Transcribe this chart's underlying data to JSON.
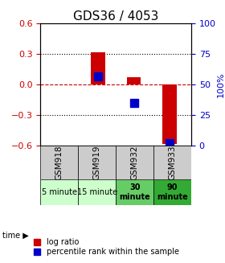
{
  "title": "GDS36 / 4053",
  "samples": [
    "GSM918",
    "GSM919",
    "GSM932",
    "GSM933"
  ],
  "time_labels": [
    "5 minute",
    "15 minute",
    "30\nminute",
    "90\nminute"
  ],
  "log_ratios": [
    0.0,
    0.32,
    0.07,
    -0.58
  ],
  "percentile_ranks": [
    null,
    57.0,
    35.0,
    2.0
  ],
  "ylim_left": [
    -0.6,
    0.6
  ],
  "ylim_right": [
    0,
    100
  ],
  "bar_color": "#cc0000",
  "dot_color": "#0000cc",
  "yticks_left": [
    -0.6,
    -0.3,
    0.0,
    0.3,
    0.6
  ],
  "yticks_right": [
    0,
    25,
    50,
    75,
    100
  ],
  "bar_width": 0.4,
  "dot_size": 60,
  "time_bg_colors": [
    "#ccffcc",
    "#ccffcc",
    "#66cc66",
    "#33aa33"
  ],
  "gsm_bg_color": "#cccccc",
  "grid_color": "#000000",
  "zero_line_color": "#cc0000",
  "dotted_grid_color": "#000000",
  "title_fontsize": 11,
  "tick_fontsize": 8,
  "legend_fontsize": 7,
  "time_cell_fontsize": 7,
  "gsm_cell_fontsize": 7.5
}
